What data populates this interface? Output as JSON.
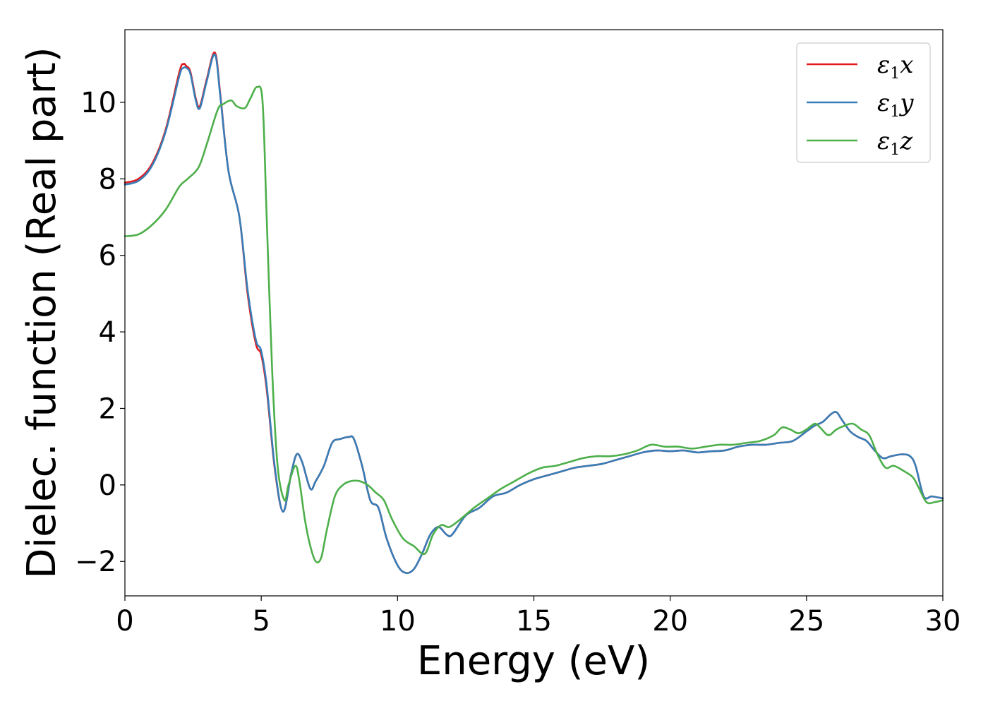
{
  "chart_data": {
    "type": "line",
    "title": "",
    "xlabel": "Energy (eV)",
    "ylabel": "Dielec. function (Real part)",
    "xlim": [
      0,
      30
    ],
    "ylim": [
      -2.9,
      11.9
    ],
    "xticks": [
      0,
      5,
      10,
      15,
      20,
      25,
      30
    ],
    "xtick_labels": [
      "0",
      "5",
      "10",
      "15",
      "20",
      "25",
      "30"
    ],
    "yticks": [
      -2,
      0,
      2,
      4,
      6,
      8,
      10
    ],
    "ytick_labels": [
      "−2",
      "0",
      "2",
      "4",
      "6",
      "8",
      "10"
    ],
    "grid": false,
    "legend_position": "top-right",
    "series": [
      {
        "name": "ε1x",
        "symbol": "ε",
        "subscript": "1",
        "component": "x",
        "color": "#e41a1c",
        "x": [
          0,
          0.5,
          1.0,
          1.5,
          2.0,
          2.15,
          2.25,
          2.4,
          2.6,
          2.75,
          3.0,
          3.3,
          3.5,
          3.8,
          4.2,
          4.5,
          4.8,
          5.0,
          5.2,
          5.5,
          5.8,
          6.1,
          6.3,
          6.5,
          6.8,
          7.0,
          7.3,
          7.6,
          7.9,
          8.2,
          8.4,
          8.7,
          9.0,
          9.3,
          9.6,
          10.0,
          10.3,
          10.6,
          10.9,
          11.2,
          11.5,
          11.8,
          12.0,
          12.5,
          13.0,
          13.5,
          14.0,
          14.5,
          15.0,
          15.5,
          16.0,
          16.5,
          17.0,
          17.5,
          18.0,
          18.5,
          19.0,
          19.5,
          20.0,
          20.5,
          21.0,
          21.5,
          22.0,
          22.5,
          23.0,
          23.5,
          24.0,
          24.5,
          25.0,
          25.3,
          25.6,
          25.9,
          26.1,
          26.3,
          26.6,
          26.9,
          27.2,
          27.5,
          27.8,
          28.1,
          28.5,
          28.8,
          29.0,
          29.3,
          29.6,
          30.0
        ],
        "y": [
          7.9,
          8.0,
          8.4,
          9.3,
          10.8,
          11.0,
          10.95,
          10.8,
          10.1,
          9.9,
          10.6,
          11.3,
          10.2,
          8.2,
          7.0,
          5.0,
          3.7,
          3.4,
          2.5,
          0.4,
          -0.7,
          0.3,
          0.8,
          0.6,
          -0.1,
          0.1,
          0.5,
          1.1,
          1.2,
          1.25,
          1.2,
          0.5,
          -0.4,
          -0.6,
          -1.4,
          -2.1,
          -2.3,
          -2.2,
          -1.8,
          -1.3,
          -1.1,
          -1.3,
          -1.3,
          -0.8,
          -0.6,
          -0.3,
          -0.2,
          0.0,
          0.15,
          0.25,
          0.35,
          0.45,
          0.5,
          0.55,
          0.65,
          0.75,
          0.85,
          0.9,
          0.88,
          0.9,
          0.85,
          0.88,
          0.9,
          1.0,
          1.05,
          1.05,
          1.1,
          1.15,
          1.4,
          1.55,
          1.65,
          1.85,
          1.9,
          1.7,
          1.4,
          1.25,
          1.15,
          0.9,
          0.7,
          0.75,
          0.8,
          0.75,
          0.5,
          -0.3,
          -0.3,
          -0.35
        ]
      },
      {
        "name": "ε1y",
        "symbol": "ε",
        "subscript": "1",
        "component": "y",
        "color": "#377eb8",
        "x": [
          0,
          0.5,
          1.0,
          1.5,
          2.0,
          2.15,
          2.25,
          2.4,
          2.6,
          2.75,
          3.0,
          3.3,
          3.5,
          3.8,
          4.2,
          4.5,
          4.8,
          5.0,
          5.2,
          5.5,
          5.8,
          6.1,
          6.3,
          6.5,
          6.8,
          7.0,
          7.3,
          7.6,
          7.9,
          8.2,
          8.4,
          8.7,
          9.0,
          9.3,
          9.6,
          10.0,
          10.3,
          10.6,
          10.9,
          11.2,
          11.5,
          11.8,
          12.0,
          12.5,
          13.0,
          13.5,
          14.0,
          14.5,
          15.0,
          15.5,
          16.0,
          16.5,
          17.0,
          17.5,
          18.0,
          18.5,
          19.0,
          19.5,
          20.0,
          20.5,
          21.0,
          21.5,
          22.0,
          22.5,
          23.0,
          23.5,
          24.0,
          24.5,
          25.0,
          25.3,
          25.6,
          25.9,
          26.1,
          26.3,
          26.6,
          26.9,
          27.2,
          27.5,
          27.8,
          28.1,
          28.5,
          28.8,
          29.0,
          29.3,
          29.6,
          30.0
        ],
        "y": [
          7.85,
          7.95,
          8.35,
          9.25,
          10.7,
          10.9,
          10.9,
          10.75,
          10.05,
          9.85,
          10.55,
          11.25,
          10.15,
          8.2,
          7.0,
          5.1,
          3.8,
          3.5,
          2.6,
          0.45,
          -0.7,
          0.3,
          0.8,
          0.6,
          -0.1,
          0.1,
          0.5,
          1.1,
          1.2,
          1.25,
          1.2,
          0.5,
          -0.4,
          -0.6,
          -1.4,
          -2.1,
          -2.3,
          -2.2,
          -1.8,
          -1.3,
          -1.1,
          -1.3,
          -1.3,
          -0.8,
          -0.6,
          -0.3,
          -0.2,
          0.0,
          0.15,
          0.25,
          0.35,
          0.45,
          0.5,
          0.55,
          0.65,
          0.75,
          0.85,
          0.9,
          0.88,
          0.9,
          0.85,
          0.88,
          0.9,
          1.0,
          1.05,
          1.05,
          1.1,
          1.15,
          1.4,
          1.55,
          1.65,
          1.85,
          1.9,
          1.7,
          1.4,
          1.25,
          1.15,
          0.9,
          0.7,
          0.75,
          0.8,
          0.75,
          0.5,
          -0.3,
          -0.3,
          -0.35
        ]
      },
      {
        "name": "ε1z",
        "symbol": "ε",
        "subscript": "1",
        "component": "z",
        "color": "#4daf4a",
        "x": [
          0,
          0.5,
          1.0,
          1.5,
          2.0,
          2.3,
          2.7,
          3.0,
          3.4,
          3.6,
          3.9,
          4.1,
          4.4,
          4.6,
          4.85,
          5.05,
          5.2,
          5.4,
          5.6,
          5.85,
          6.0,
          6.25,
          6.4,
          6.6,
          6.8,
          7.0,
          7.2,
          7.4,
          7.7,
          8.0,
          8.3,
          8.6,
          8.9,
          9.2,
          9.5,
          9.8,
          10.2,
          10.6,
          11.0,
          11.3,
          11.6,
          11.9,
          12.3,
          12.8,
          13.3,
          13.8,
          14.3,
          14.8,
          15.3,
          15.8,
          16.3,
          16.8,
          17.3,
          17.8,
          18.3,
          18.8,
          19.3,
          19.8,
          20.3,
          20.8,
          21.3,
          21.8,
          22.3,
          22.8,
          23.3,
          23.8,
          24.1,
          24.4,
          24.7,
          25.0,
          25.3,
          25.5,
          25.8,
          26.1,
          26.4,
          26.7,
          27.0,
          27.3,
          27.6,
          27.9,
          28.2,
          28.6,
          28.9,
          29.1,
          29.4,
          29.7,
          30.0
        ],
        "y": [
          6.5,
          6.55,
          6.8,
          7.2,
          7.8,
          8.0,
          8.3,
          8.9,
          9.8,
          9.95,
          10.05,
          9.9,
          9.85,
          10.1,
          10.4,
          10.0,
          7.0,
          3.0,
          0.5,
          -0.4,
          0.0,
          0.5,
          0.1,
          -0.9,
          -1.6,
          -2.0,
          -1.9,
          -1.2,
          -0.3,
          0.0,
          0.1,
          0.1,
          0.0,
          -0.2,
          -0.4,
          -0.9,
          -1.4,
          -1.6,
          -1.8,
          -1.3,
          -1.05,
          -1.1,
          -0.9,
          -0.6,
          -0.35,
          -0.1,
          0.1,
          0.3,
          0.45,
          0.5,
          0.6,
          0.7,
          0.75,
          0.75,
          0.8,
          0.9,
          1.05,
          1.0,
          1.0,
          0.95,
          1.0,
          1.05,
          1.05,
          1.1,
          1.15,
          1.3,
          1.5,
          1.45,
          1.35,
          1.45,
          1.6,
          1.5,
          1.3,
          1.45,
          1.55,
          1.6,
          1.45,
          1.3,
          0.8,
          0.45,
          0.5,
          0.35,
          0.2,
          -0.05,
          -0.45,
          -0.45,
          -0.4
        ]
      }
    ]
  }
}
